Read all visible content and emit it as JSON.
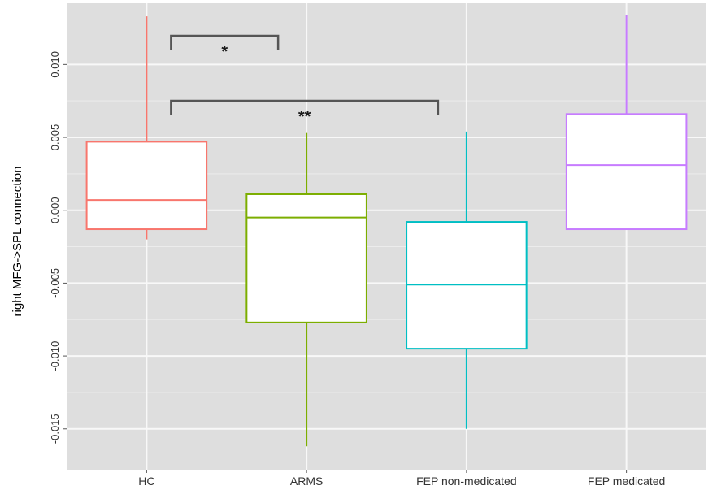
{
  "chart_data": {
    "type": "box",
    "ylabel": "right MFG->SPL connection",
    "xlabel": "",
    "ylim": [
      -0.0178,
      0.0142
    ],
    "yticks": [
      0.01,
      0.005,
      0.0,
      -0.005,
      -0.01,
      -0.015
    ],
    "ytick_labels": [
      "0.010",
      "0.005",
      "0.000",
      "-0.005",
      "-0.010",
      "-0.015"
    ],
    "grid": true,
    "background": "#dedede",
    "categories": [
      "HC",
      "ARMS",
      "FEP non-medicated",
      "FEP medicated"
    ],
    "boxes": [
      {
        "category": "HC",
        "color": "#f8766d",
        "whisker_low": -0.002,
        "q1": -0.0013,
        "median": 0.0007,
        "q3": 0.0047,
        "whisker_high": 0.0133
      },
      {
        "category": "ARMS",
        "color": "#7cae00",
        "whisker_low": -0.0162,
        "q1": -0.0077,
        "median": -0.0005,
        "q3": 0.0011,
        "whisker_high": 0.0053
      },
      {
        "category": "FEP non-medicated",
        "color": "#00bfc4",
        "whisker_low": -0.015,
        "q1": -0.0095,
        "median": -0.0051,
        "q3": -0.0008,
        "whisker_high": 0.0054
      },
      {
        "category": "FEP medicated",
        "color": "#c77cff",
        "whisker_low": -0.0013,
        "q1": -0.0013,
        "median": 0.0031,
        "q3": 0.0066,
        "whisker_high": 0.0134
      }
    ],
    "significance": [
      {
        "from": "HC",
        "to": "ARMS",
        "label": "*"
      },
      {
        "from": "HC",
        "to": "FEP non-medicated",
        "label": "**"
      }
    ]
  }
}
